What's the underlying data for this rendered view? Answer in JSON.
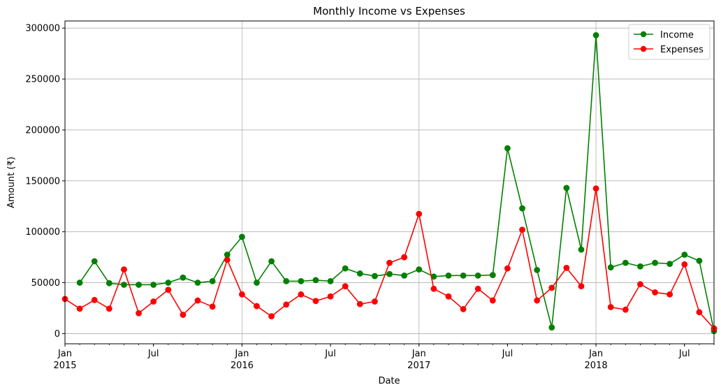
{
  "chart_data": {
    "type": "line",
    "title": "Monthly Income vs Expenses",
    "xlabel": "Date",
    "ylabel": "Amount (₹)",
    "x": [
      "2015-01",
      "2015-02",
      "2015-03",
      "2015-04",
      "2015-05",
      "2015-06",
      "2015-07",
      "2015-08",
      "2015-09",
      "2015-10",
      "2015-11",
      "2015-12",
      "2016-01",
      "2016-02",
      "2016-03",
      "2016-04",
      "2016-05",
      "2016-06",
      "2016-07",
      "2016-08",
      "2016-09",
      "2016-10",
      "2016-11",
      "2016-12",
      "2017-01",
      "2017-02",
      "2017-03",
      "2017-04",
      "2017-05",
      "2017-06",
      "2017-07",
      "2017-08",
      "2017-09",
      "2017-10",
      "2017-11",
      "2017-12",
      "2018-01",
      "2018-02",
      "2018-03",
      "2018-04",
      "2018-05",
      "2018-06",
      "2018-07",
      "2018-08",
      "2018-09"
    ],
    "xlim": [
      "2015-01",
      "2018-09"
    ],
    "ylim": [
      -10000,
      307000
    ],
    "yticks": [
      0,
      50000,
      100000,
      150000,
      200000,
      250000,
      300000
    ],
    "ytick_labels": [
      "0",
      "50000",
      "100000",
      "150000",
      "200000",
      "250000",
      "300000"
    ],
    "xticks": [
      {
        "x": "2015-01",
        "label": "Jan",
        "sublabel": "2015",
        "major": true
      },
      {
        "x": "2015-07",
        "label": "Jul",
        "sublabel": "",
        "major": false
      },
      {
        "x": "2016-01",
        "label": "Jan",
        "sublabel": "2016",
        "major": true
      },
      {
        "x": "2016-07",
        "label": "Jul",
        "sublabel": "",
        "major": false
      },
      {
        "x": "2017-01",
        "label": "Jan",
        "sublabel": "2017",
        "major": true
      },
      {
        "x": "2017-07",
        "label": "Jul",
        "sublabel": "",
        "major": false
      },
      {
        "x": "2018-01",
        "label": "Jan",
        "sublabel": "2018",
        "major": true
      },
      {
        "x": "2018-07",
        "label": "Jul",
        "sublabel": "",
        "major": false
      }
    ],
    "grid": true,
    "legend_position": "upper right",
    "series": [
      {
        "name": "Income",
        "color": "#008000",
        "marker": "circle",
        "values": [
          null,
          50000,
          71000,
          49500,
          48000,
          48000,
          48000,
          50000,
          55000,
          50000,
          51500,
          77500,
          95000,
          50000,
          71000,
          51500,
          51500,
          52500,
          51500,
          64000,
          59000,
          56500,
          58500,
          57000,
          63000,
          56000,
          57000,
          57000,
          57000,
          57500,
          182000,
          123000,
          62500,
          6000,
          143000,
          82500,
          293000,
          65000,
          69500,
          66000,
          69500,
          68500,
          77500,
          71500,
          2500
        ]
      },
      {
        "name": "Expenses",
        "color": "#ff0000",
        "marker": "circle",
        "values": [
          34000,
          24500,
          33000,
          24500,
          63000,
          20000,
          31500,
          43000,
          18500,
          32500,
          26500,
          72500,
          38500,
          27000,
          17000,
          28500,
          38500,
          32000,
          36500,
          46500,
          29000,
          31500,
          69500,
          75000,
          117500,
          44000,
          36500,
          24000,
          44000,
          32500,
          64000,
          102000,
          32500,
          45000,
          64500,
          46500,
          142500,
          26000,
          23500,
          48500,
          40500,
          38500,
          68000,
          21000,
          5000
        ]
      }
    ]
  }
}
